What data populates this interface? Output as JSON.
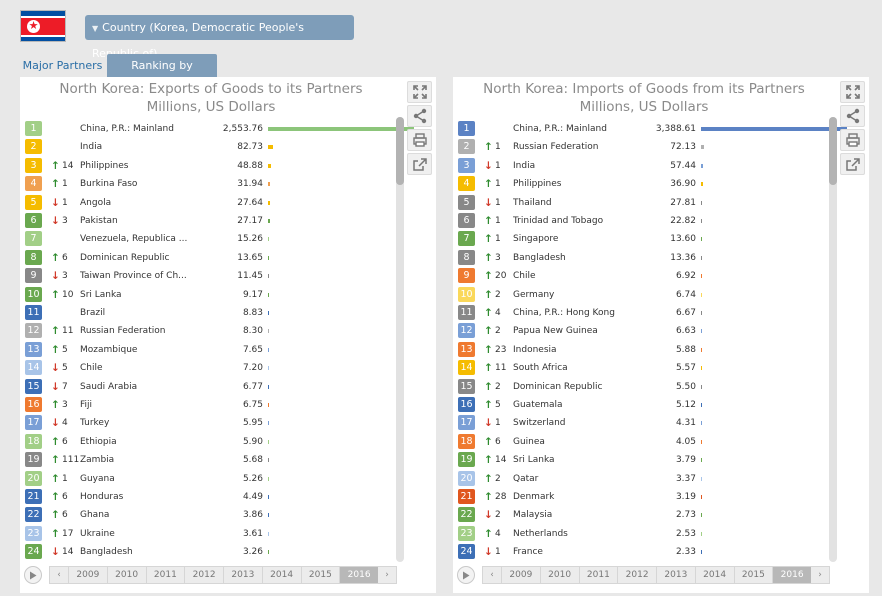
{
  "country_select": {
    "label": "Country (Korea, Democratic People's Republic of)"
  },
  "tabs": [
    {
      "label": "Major Partners",
      "active": false
    },
    {
      "label": "Ranking by Partners",
      "active": true
    }
  ],
  "colors": {
    "export_bar": "#8cc57a",
    "import_bar": "#5b82c4",
    "tab_active": "#7e9db9",
    "up_arrow": "#2e8b2e",
    "down_arrow": "#d13a2a"
  },
  "panels": [
    {
      "id": "exports",
      "title_line1": "North Korea: Exports of Goods to its Partners",
      "title_line2": "Millions, US Dollars",
      "max_value": 2553.76,
      "bar_color": "#8cc57a",
      "rows": [
        {
          "rank": "1",
          "color": "#a2cf87",
          "dir": "",
          "delta": "",
          "name": "China, P.R.: Mainland",
          "value": "2,553.76",
          "num": 2553.76
        },
        {
          "rank": "2",
          "color": "#f5bc00",
          "dir": "",
          "delta": "",
          "name": "India",
          "value": "82.73",
          "num": 82.73
        },
        {
          "rank": "3",
          "color": "#f5bc00",
          "dir": "up",
          "delta": "14",
          "name": "Philippines",
          "value": "48.88",
          "num": 48.88
        },
        {
          "rank": "4",
          "color": "#f0a050",
          "dir": "up",
          "delta": "1",
          "name": "Burkina Faso",
          "value": "31.94",
          "num": 31.94
        },
        {
          "rank": "5",
          "color": "#f5bc00",
          "dir": "down",
          "delta": "1",
          "name": "Angola",
          "value": "27.64",
          "num": 27.64
        },
        {
          "rank": "6",
          "color": "#6aa84f",
          "dir": "down",
          "delta": "3",
          "name": "Pakistan",
          "value": "27.17",
          "num": 27.17
        },
        {
          "rank": "7",
          "color": "#a2cf87",
          "dir": "",
          "delta": "",
          "name": "Venezuela, Republica ...",
          "value": "15.26",
          "num": 15.26
        },
        {
          "rank": "8",
          "color": "#6aa84f",
          "dir": "up",
          "delta": "6",
          "name": "Dominican Republic",
          "value": "13.65",
          "num": 13.65
        },
        {
          "rank": "9",
          "color": "#888888",
          "dir": "down",
          "delta": "3",
          "name": "Taiwan Province of Ch...",
          "value": "11.45",
          "num": 11.45
        },
        {
          "rank": "10",
          "color": "#6aa84f",
          "dir": "up",
          "delta": "10",
          "name": "Sri Lanka",
          "value": "9.17",
          "num": 9.17
        },
        {
          "rank": "11",
          "color": "#3d6fb6",
          "dir": "",
          "delta": "",
          "name": "Brazil",
          "value": "8.83",
          "num": 8.83
        },
        {
          "rank": "12",
          "color": "#b0b0b0",
          "dir": "up",
          "delta": "11",
          "name": "Russian Federation",
          "value": "8.30",
          "num": 8.3
        },
        {
          "rank": "13",
          "color": "#7a9fd6",
          "dir": "up",
          "delta": "5",
          "name": "Mozambique",
          "value": "7.65",
          "num": 7.65
        },
        {
          "rank": "14",
          "color": "#a8c4e8",
          "dir": "down",
          "delta": "5",
          "name": "Chile",
          "value": "7.20",
          "num": 7.2
        },
        {
          "rank": "15",
          "color": "#3d6fb6",
          "dir": "down",
          "delta": "7",
          "name": "Saudi Arabia",
          "value": "6.77",
          "num": 6.77
        },
        {
          "rank": "16",
          "color": "#ef7a30",
          "dir": "up",
          "delta": "3",
          "name": "Fiji",
          "value": "6.75",
          "num": 6.75
        },
        {
          "rank": "17",
          "color": "#7a9fd6",
          "dir": "down",
          "delta": "4",
          "name": "Turkey",
          "value": "5.95",
          "num": 5.95
        },
        {
          "rank": "18",
          "color": "#a2cf87",
          "dir": "up",
          "delta": "6",
          "name": "Ethiopia",
          "value": "5.90",
          "num": 5.9
        },
        {
          "rank": "19",
          "color": "#888888",
          "dir": "up",
          "delta": "111",
          "name": "Zambia",
          "value": "5.68",
          "num": 5.68
        },
        {
          "rank": "20",
          "color": "#a2cf87",
          "dir": "up",
          "delta": "1",
          "name": "Guyana",
          "value": "5.26",
          "num": 5.26
        },
        {
          "rank": "21",
          "color": "#3d6fb6",
          "dir": "up",
          "delta": "6",
          "name": "Honduras",
          "value": "4.49",
          "num": 4.49
        },
        {
          "rank": "22",
          "color": "#3d6fb6",
          "dir": "up",
          "delta": "6",
          "name": "Ghana",
          "value": "3.86",
          "num": 3.86
        },
        {
          "rank": "23",
          "color": "#a8c4e8",
          "dir": "up",
          "delta": "17",
          "name": "Ukraine",
          "value": "3.61",
          "num": 3.61
        },
        {
          "rank": "24",
          "color": "#6aa84f",
          "dir": "down",
          "delta": "14",
          "name": "Bangladesh",
          "value": "3.26",
          "num": 3.26
        }
      ],
      "years": [
        "2009",
        "2010",
        "2011",
        "2012",
        "2013",
        "2014",
        "2015",
        "2016"
      ],
      "selected_year": "2016"
    },
    {
      "id": "imports",
      "title_line1": "North Korea: Imports of Goods from its Partners",
      "title_line2": "Millions, US Dollars",
      "max_value": 3388.61,
      "bar_color": "#5b82c4",
      "rows": [
        {
          "rank": "1",
          "color": "#5b82c4",
          "dir": "",
          "delta": "",
          "name": "China, P.R.: Mainland",
          "value": "3,388.61",
          "num": 3388.61
        },
        {
          "rank": "2",
          "color": "#b0b0b0",
          "dir": "up",
          "delta": "1",
          "name": "Russian Federation",
          "value": "72.13",
          "num": 72.13
        },
        {
          "rank": "3",
          "color": "#7a9fd6",
          "dir": "down",
          "delta": "1",
          "name": "India",
          "value": "57.44",
          "num": 57.44
        },
        {
          "rank": "4",
          "color": "#f5bc00",
          "dir": "up",
          "delta": "1",
          "name": "Philippines",
          "value": "36.90",
          "num": 36.9
        },
        {
          "rank": "5",
          "color": "#888888",
          "dir": "down",
          "delta": "1",
          "name": "Thailand",
          "value": "27.81",
          "num": 27.81
        },
        {
          "rank": "6",
          "color": "#888888",
          "dir": "up",
          "delta": "1",
          "name": "Trinidad and Tobago",
          "value": "22.82",
          "num": 22.82
        },
        {
          "rank": "7",
          "color": "#6aa84f",
          "dir": "up",
          "delta": "1",
          "name": "Singapore",
          "value": "13.60",
          "num": 13.6
        },
        {
          "rank": "8",
          "color": "#888888",
          "dir": "up",
          "delta": "3",
          "name": "Bangladesh",
          "value": "13.36",
          "num": 13.36
        },
        {
          "rank": "9",
          "color": "#ef7a30",
          "dir": "up",
          "delta": "20",
          "name": "Chile",
          "value": "6.92",
          "num": 6.92
        },
        {
          "rank": "10",
          "color": "#fad85a",
          "dir": "up",
          "delta": "2",
          "name": "Germany",
          "value": "6.74",
          "num": 6.74
        },
        {
          "rank": "11",
          "color": "#888888",
          "dir": "up",
          "delta": "4",
          "name": "China, P.R.: Hong Kong",
          "value": "6.67",
          "num": 6.67
        },
        {
          "rank": "12",
          "color": "#7a9fd6",
          "dir": "up",
          "delta": "2",
          "name": "Papua New Guinea",
          "value": "6.63",
          "num": 6.63
        },
        {
          "rank": "13",
          "color": "#ef7a30",
          "dir": "up",
          "delta": "23",
          "name": "Indonesia",
          "value": "5.88",
          "num": 5.88
        },
        {
          "rank": "14",
          "color": "#f5bc00",
          "dir": "up",
          "delta": "11",
          "name": "South Africa",
          "value": "5.57",
          "num": 5.57
        },
        {
          "rank": "15",
          "color": "#888888",
          "dir": "up",
          "delta": "2",
          "name": "Dominican Republic",
          "value": "5.50",
          "num": 5.5
        },
        {
          "rank": "16",
          "color": "#3d6fb6",
          "dir": "up",
          "delta": "5",
          "name": "Guatemala",
          "value": "5.12",
          "num": 5.12
        },
        {
          "rank": "17",
          "color": "#7a9fd6",
          "dir": "down",
          "delta": "1",
          "name": "Switzerland",
          "value": "4.31",
          "num": 4.31
        },
        {
          "rank": "18",
          "color": "#ef7a30",
          "dir": "up",
          "delta": "6",
          "name": "Guinea",
          "value": "4.05",
          "num": 4.05
        },
        {
          "rank": "19",
          "color": "#6aa84f",
          "dir": "up",
          "delta": "14",
          "name": "Sri Lanka",
          "value": "3.79",
          "num": 3.79
        },
        {
          "rank": "20",
          "color": "#a8c4e8",
          "dir": "up",
          "delta": "2",
          "name": "Qatar",
          "value": "3.37",
          "num": 3.37
        },
        {
          "rank": "21",
          "color": "#e0561e",
          "dir": "up",
          "delta": "28",
          "name": "Denmark",
          "value": "3.19",
          "num": 3.19
        },
        {
          "rank": "22",
          "color": "#6aa84f",
          "dir": "down",
          "delta": "2",
          "name": "Malaysia",
          "value": "2.73",
          "num": 2.73
        },
        {
          "rank": "23",
          "color": "#a2cf87",
          "dir": "up",
          "delta": "4",
          "name": "Netherlands",
          "value": "2.53",
          "num": 2.53
        },
        {
          "rank": "24",
          "color": "#3d6fb6",
          "dir": "down",
          "delta": "1",
          "name": "France",
          "value": "2.33",
          "num": 2.33
        }
      ],
      "years": [
        "2009",
        "2010",
        "2011",
        "2012",
        "2013",
        "2014",
        "2015",
        "2016"
      ],
      "selected_year": "2016"
    }
  ]
}
